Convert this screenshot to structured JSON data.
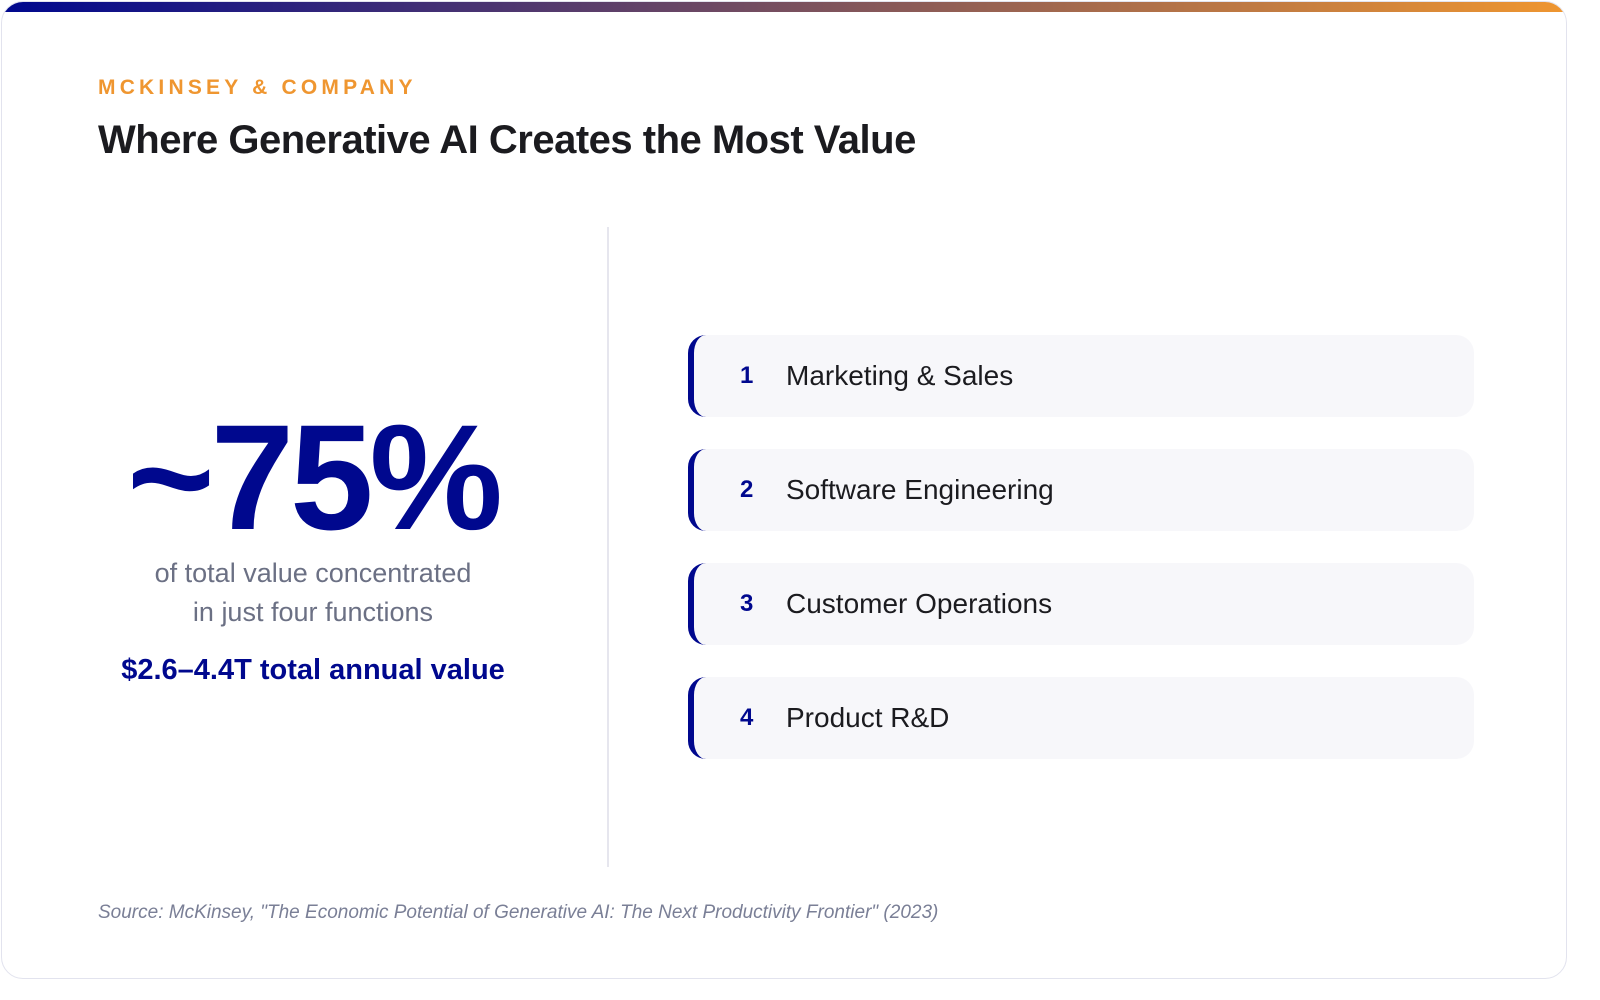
{
  "colors": {
    "accent": "#00088e",
    "brand_orange": "#ef9630",
    "card_bg": "#f7f7fa"
  },
  "header": {
    "kicker": "MCKINSEY & COMPANY",
    "title": "Where Generative AI Creates the Most Value"
  },
  "stat": {
    "value": "~75%",
    "description_line1": "of total value concentrated",
    "description_line2": "in just four functions",
    "total": "$2.6–4.4T total annual value"
  },
  "functions": [
    {
      "rank": "1",
      "label": "Marketing & Sales"
    },
    {
      "rank": "2",
      "label": "Software Engineering"
    },
    {
      "rank": "3",
      "label": "Customer Operations"
    },
    {
      "rank": "4",
      "label": "Product R&D"
    }
  ],
  "source": "Source: McKinsey, \"The Economic Potential of Generative AI: The Next Productivity Frontier\" (2023)"
}
